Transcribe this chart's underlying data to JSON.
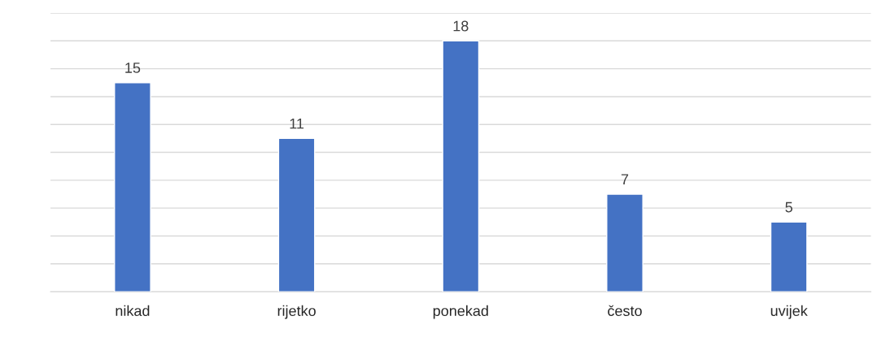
{
  "chart_data": {
    "type": "bar",
    "categories": [
      "nikad",
      "rijetko",
      "ponekad",
      "često",
      "uvijek"
    ],
    "values": [
      15,
      11,
      18,
      7,
      5
    ],
    "color": "#4472c4",
    "ylim": [
      0,
      20
    ],
    "yticks": [
      0,
      2,
      4,
      6,
      8,
      10,
      12,
      14,
      16,
      18,
      20
    ],
    "tick_labels": "x",
    "grid": "y",
    "data_labels": true,
    "legend": false
  }
}
